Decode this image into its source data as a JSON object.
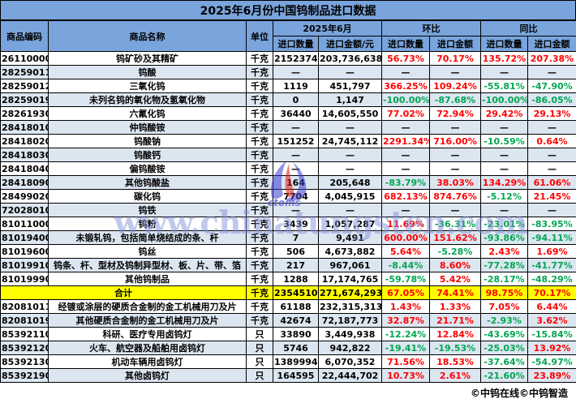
{
  "title": "2025年6月份中国钨制品进口数据",
  "header": {
    "code": "商品编码",
    "name": "商品名称",
    "unit": "单位",
    "month_group": "2025年6月",
    "mom_group": "环比",
    "yoy_group": "同比",
    "qty": "进口数量",
    "amount_yuan": "进口金额/元",
    "amount": "进口金额"
  },
  "rows": [
    {
      "code": "26110000",
      "name": "钨矿砂及其精矿",
      "unit": "千克",
      "qty": "2152374",
      "amount": "203,736,638",
      "mom_qty": "56.73%",
      "mom_amt": "70.17%",
      "yoy_qty": "135.72%",
      "yoy_amt": "207.38%"
    },
    {
      "code": "28259011",
      "name": "钨酸",
      "unit": "千克",
      "qty": "—",
      "amount": "—",
      "mom_qty": "—",
      "mom_amt": "—",
      "yoy_qty": "—",
      "yoy_amt": "—"
    },
    {
      "code": "28259012",
      "name": "三氧化钨",
      "unit": "千克",
      "qty": "1119",
      "amount": "451,797",
      "mom_qty": "366.25%",
      "mom_amt": "109.24%",
      "yoy_qty": "-55.81%",
      "yoy_amt": "-47.90%"
    },
    {
      "code": "28259019",
      "name": "未列名钨的氧化物及氢氧化物",
      "unit": "千克",
      "qty": "0",
      "amount": "1,147",
      "mom_qty": "-100.00%",
      "mom_amt": "-87.68%",
      "yoy_qty": "-100.00%",
      "yoy_amt": "-86.05%"
    },
    {
      "code": "28261930",
      "name": "六氟化钨",
      "unit": "千克",
      "qty": "36440",
      "amount": "14,605,550",
      "mom_qty": "77.02%",
      "mom_amt": "72.94%",
      "yoy_qty": "29.42%",
      "yoy_amt": "29.13%"
    },
    {
      "code": "28418010",
      "name": "仲钨酸铵",
      "unit": "千克",
      "qty": "—",
      "amount": "—",
      "mom_qty": "—",
      "mom_amt": "—",
      "yoy_qty": "—",
      "yoy_amt": "—"
    },
    {
      "code": "28418020",
      "name": "钨酸钠",
      "unit": "千克",
      "qty": "151252",
      "amount": "24,745,112",
      "mom_qty": "2291.34%",
      "mom_amt": "716.00%",
      "yoy_qty": "-10.59%",
      "yoy_amt": "0.64%"
    },
    {
      "code": "28418030",
      "name": "钨酸钙",
      "unit": "千克",
      "qty": "—",
      "amount": "—",
      "mom_qty": "—",
      "mom_amt": "—",
      "yoy_qty": "—",
      "yoy_amt": "—"
    },
    {
      "code": "28418040",
      "name": "偏钨酸铵",
      "unit": "千克",
      "qty": "—",
      "amount": "—",
      "mom_qty": "—",
      "mom_amt": "—",
      "yoy_qty": "—",
      "yoy_amt": "—"
    },
    {
      "code": "28418090",
      "name": "其他钨酸盐",
      "unit": "千克",
      "qty": "164",
      "amount": "205,648",
      "mom_qty": "-83.79%",
      "mom_amt": "38.03%",
      "yoy_qty": "134.29%",
      "yoy_amt": "61.06%"
    },
    {
      "code": "28499020",
      "name": "碳化钨",
      "unit": "千克",
      "qty": "7704",
      "amount": "4,045,915",
      "mom_qty": "682.13%",
      "mom_amt": "874.76%",
      "yoy_qty": "-5.12%",
      "yoy_amt": "21.45%"
    },
    {
      "code": "72028010",
      "name": "钨铁",
      "unit": "千克",
      "qty": "—",
      "amount": "—",
      "mom_qty": "—",
      "mom_amt": "—",
      "yoy_qty": "—",
      "yoy_amt": "—"
    },
    {
      "code": "81011000",
      "name": "钨粉",
      "unit": "千克",
      "qty": "3439",
      "amount": "1,057,287",
      "mom_qty": "11.69%",
      "mom_amt": "-36.31%",
      "yoy_qty": "-23.01%",
      "yoy_amt": "-83.95%"
    },
    {
      "code": "81019400",
      "name": "未锻轧钨，包括简单烧结成的条、杆",
      "unit": "千克",
      "qty": "7",
      "amount": "9,491",
      "mom_qty": "600.00%",
      "mom_amt": "151.62%",
      "yoy_qty": "-93.86%",
      "yoy_amt": "-94.11%"
    },
    {
      "code": "81019600",
      "name": "钨丝",
      "unit": "千克",
      "qty": "506",
      "amount": "4,673,882",
      "mom_qty": "5.64%",
      "mom_amt": "-5.28%",
      "yoy_qty": "2.43%",
      "yoy_amt": "1.69%"
    },
    {
      "code": "81019910",
      "name": "钨条、杆、型材及钨制异型材、板、片、带、箔",
      "unit": "千克",
      "qty": "217",
      "amount": "967,061",
      "mom_qty": "-8.44%",
      "mom_amt": "8.60%",
      "yoy_qty": "-77.28%",
      "yoy_amt": "-41.77%"
    },
    {
      "code": "81019990",
      "name": "其他钨制品",
      "unit": "千克",
      "qty": "1288",
      "amount": "17,174,765",
      "mom_qty": "-59.78%",
      "mom_amt": "5.42%",
      "yoy_qty": "-28.17%",
      "yoy_amt": "-48.29%"
    },
    {
      "is_total": true,
      "code": "",
      "name": "合计",
      "unit": "千克",
      "qty": "2354510",
      "amount": "271,674,293",
      "mom_qty": "67.05%",
      "mom_amt": "74.41%",
      "yoy_qty": "98.75%",
      "yoy_amt": "70.17%"
    },
    {
      "code": "82081011",
      "name": "经镀或涂层的硬质合金制的金工机械用刀及片",
      "unit": "千克",
      "qty": "61188",
      "amount": "232,315,313",
      "mom_qty": "1.43%",
      "mom_amt": "1.33%",
      "yoy_qty": "7.05%",
      "yoy_amt": "6.44%"
    },
    {
      "code": "82081019",
      "name": "其他硬质合金制的金工机械用刀及片",
      "unit": "千克",
      "qty": "42674",
      "amount": "72,187,773",
      "mom_qty": "32.87%",
      "mom_amt": "21.71%",
      "yoy_qty": "-2.93%",
      "yoy_amt": "3.62%"
    },
    {
      "code": "85392110",
      "name": "科研、医疗专用卤钨灯",
      "unit": "只",
      "qty": "33890",
      "amount": "3,449,938",
      "mom_qty": "-12.24%",
      "mom_amt": "12.84%",
      "yoy_qty": "-43.69%",
      "yoy_amt": "-15.84%"
    },
    {
      "code": "85392120",
      "name": "火车、航空器及船舶用卤钨灯",
      "unit": "只",
      "qty": "5746",
      "amount": "942,822",
      "mom_qty": "-19.41%",
      "mom_amt": "-19.53%",
      "yoy_qty": "-25.03%",
      "yoy_amt": "13.92%"
    },
    {
      "code": "85392130",
      "name": "机动车辆用卤钨灯",
      "unit": "只",
      "qty": "1389994",
      "amount": "6,070,352",
      "mom_qty": "71.56%",
      "mom_amt": "18.53%",
      "yoy_qty": "-37.64%",
      "yoy_amt": "-54.97%"
    },
    {
      "code": "85392190",
      "name": "其他卤钨灯",
      "unit": "只",
      "qty": "164595",
      "amount": "22,444,702",
      "mom_qty": "10.73%",
      "mom_amt": "2.61%",
      "yoy_qty": "-21.60%",
      "yoy_amt": "23.89%"
    }
  ],
  "footer": "©中钨在线©中钨智造",
  "watermark": {
    "text": "www.chinatungsten.com",
    "logo_text": "ctoms"
  },
  "colors": {
    "header_bg": "#79a4dc",
    "row_alt_bg": "#dce6f1",
    "total_row_bg": "#ffff00",
    "positive_text": "#ff0000",
    "negative_text": "#00a651",
    "border": "#000000"
  }
}
